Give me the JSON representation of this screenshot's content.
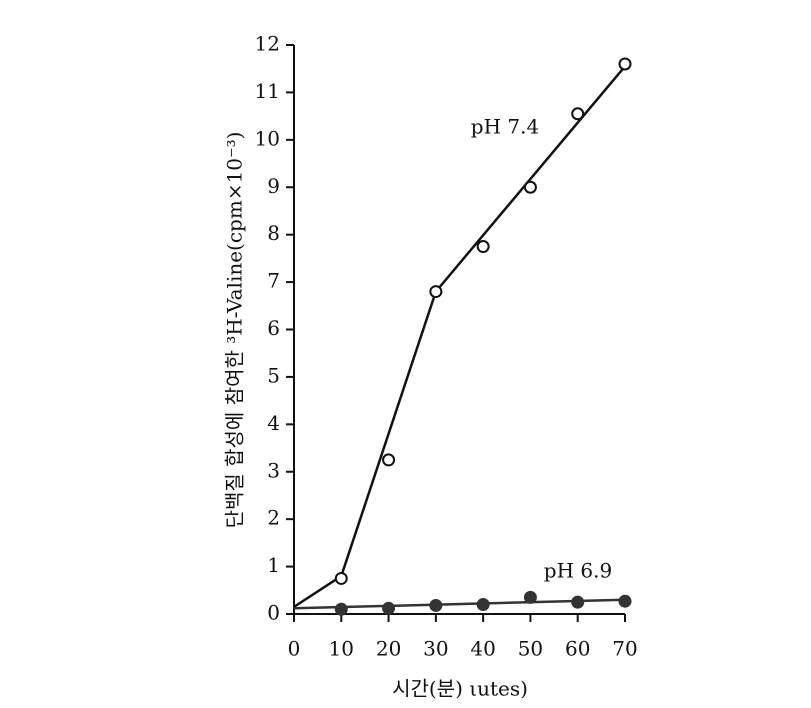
{
  "chart_data": {
    "type": "scatter",
    "y_label": "단백질 합성에 참여한 ³H-Valine(cpm×10⁻³)",
    "x_label": "시간(분) ιutes)",
    "xlim": [
      0,
      70
    ],
    "xticks": [
      0,
      10,
      20,
      30,
      40,
      50,
      60,
      70
    ],
    "ylim": [
      0,
      12
    ],
    "yticks": [
      0,
      1,
      2,
      3,
      4,
      5,
      6,
      7,
      8,
      9,
      10,
      11,
      12
    ],
    "series": [
      {
        "name": "pH 7.4",
        "marker": "open",
        "color": "#111111",
        "x": [
          10,
          20,
          30,
          40,
          50,
          60,
          70
        ],
        "values": [
          0.75,
          3.25,
          6.8,
          7.75,
          9.0,
          10.55,
          11.6
        ],
        "line": {
          "x": [
            0,
            10,
            30,
            70
          ],
          "values": [
            0.15,
            0.8,
            6.8,
            11.55
          ]
        }
      },
      {
        "name": "pH 6.9",
        "marker": "filled",
        "color": "#333333",
        "x": [
          10,
          20,
          30,
          40,
          50,
          60,
          70
        ],
        "values": [
          0.1,
          0.12,
          0.18,
          0.2,
          0.35,
          0.25,
          0.27
        ],
        "line": {
          "x": [
            0,
            70
          ],
          "values": [
            0.12,
            0.3
          ]
        }
      }
    ]
  }
}
